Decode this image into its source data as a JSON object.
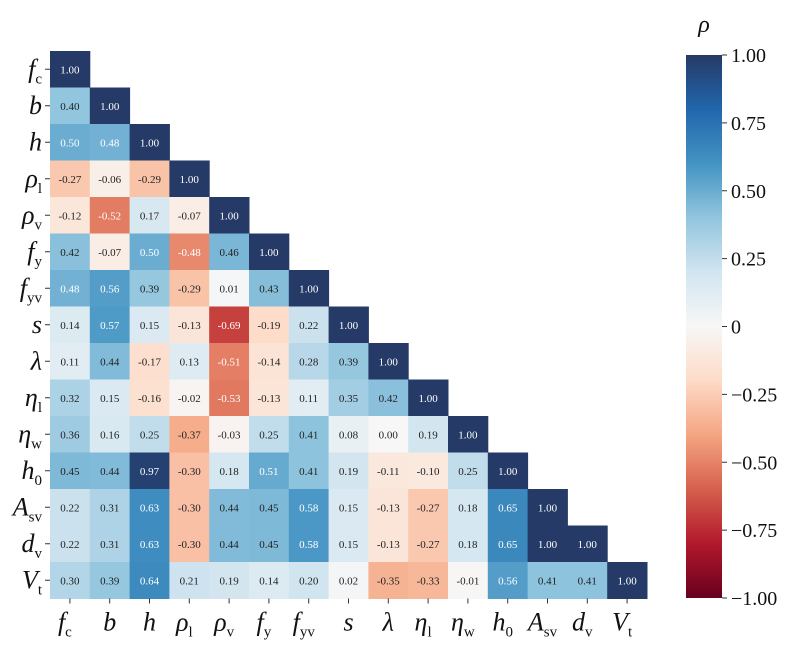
{
  "chart_data": {
    "type": "heatmap",
    "title": "",
    "variables": [
      {
        "base": "f",
        "sub": "c"
      },
      {
        "base": "b",
        "sub": ""
      },
      {
        "base": "h",
        "sub": ""
      },
      {
        "base": "ρ",
        "sub": "l"
      },
      {
        "base": "ρ",
        "sub": "v"
      },
      {
        "base": "f",
        "sub": "y"
      },
      {
        "base": "f",
        "sub": "yv"
      },
      {
        "base": "s",
        "sub": ""
      },
      {
        "base": "λ",
        "sub": ""
      },
      {
        "base": "η",
        "sub": "l"
      },
      {
        "base": "η",
        "sub": "w"
      },
      {
        "base": "h",
        "sub": "0"
      },
      {
        "base": "A",
        "sub": "sv"
      },
      {
        "base": "d",
        "sub": "v"
      },
      {
        "base": "V",
        "sub": "t"
      }
    ],
    "matrix_lower": [
      [
        1.0
      ],
      [
        0.4,
        1.0
      ],
      [
        0.5,
        0.48,
        1.0
      ],
      [
        -0.27,
        -0.06,
        -0.29,
        1.0
      ],
      [
        -0.12,
        -0.52,
        0.17,
        -0.07,
        1.0
      ],
      [
        0.42,
        -0.07,
        0.5,
        -0.48,
        0.46,
        1.0
      ],
      [
        0.48,
        0.56,
        0.39,
        -0.29,
        0.01,
        0.43,
        1.0
      ],
      [
        0.14,
        0.57,
        0.15,
        -0.13,
        -0.69,
        -0.19,
        0.22,
        1.0
      ],
      [
        0.11,
        0.44,
        -0.17,
        0.13,
        -0.51,
        -0.14,
        0.28,
        0.39,
        1.0
      ],
      [
        0.32,
        0.15,
        -0.16,
        -0.02,
        -0.53,
        -0.13,
        0.11,
        0.35,
        0.42,
        1.0
      ],
      [
        0.36,
        0.16,
        0.25,
        -0.37,
        -0.03,
        0.25,
        0.41,
        0.08,
        0.0,
        0.19,
        1.0
      ],
      [
        0.45,
        0.44,
        0.97,
        -0.3,
        0.18,
        0.51,
        0.41,
        0.19,
        -0.11,
        -0.1,
        0.25,
        1.0
      ],
      [
        0.22,
        0.31,
        0.63,
        -0.3,
        0.44,
        0.45,
        0.58,
        0.15,
        -0.13,
        -0.27,
        0.18,
        0.65,
        1.0
      ],
      [
        0.22,
        0.31,
        0.63,
        -0.3,
        0.44,
        0.45,
        0.58,
        0.15,
        -0.13,
        -0.27,
        0.18,
        0.65,
        1.0,
        1.0
      ],
      [
        0.3,
        0.39,
        0.64,
        0.21,
        0.19,
        0.14,
        0.2,
        0.02,
        -0.35,
        -0.33,
        -0.01,
        0.56,
        0.41,
        0.41,
        1.0
      ]
    ],
    "colorbar": {
      "label": "ρ",
      "range": [
        -1.0,
        1.0
      ],
      "ticks": [
        "1.00",
        "0.75",
        "0.50",
        "0.25",
        "0",
        "−0.25",
        "−0.50",
        "−0.75",
        "−1.00"
      ],
      "tick_values": [
        1.0,
        0.75,
        0.5,
        0.25,
        0,
        -0.25,
        -0.5,
        -0.75,
        -1.0
      ],
      "colormap": [
        "#67001f",
        "#b2182b",
        "#d6604d",
        "#f4a582",
        "#fddbc7",
        "#f7f7f7",
        "#d1e5f0",
        "#92c5de",
        "#4393c3",
        "#2166ac",
        "#253a66"
      ]
    }
  }
}
